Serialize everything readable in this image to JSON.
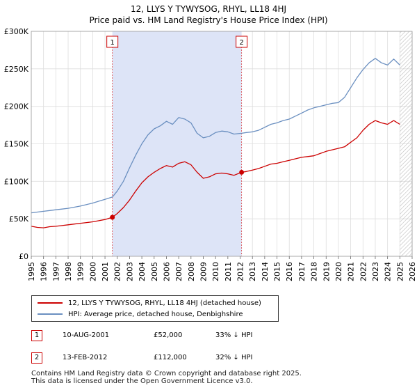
{
  "chart_data": {
    "type": "line",
    "title": "12, LLYS Y TYWYSOG, RHYL, LL18 4HJ",
    "subtitle": "Price paid vs. HM Land Registry's House Price Index (HPI)",
    "xlabel": "",
    "ylabel": "",
    "xlim": [
      1995,
      2026
    ],
    "ylim": [
      0,
      300000
    ],
    "y_ticks": [
      0,
      50000,
      100000,
      150000,
      200000,
      250000,
      300000
    ],
    "y_tick_labels": [
      "£0",
      "£50K",
      "£100K",
      "£150K",
      "£200K",
      "£250K",
      "£300K"
    ],
    "x_ticks": [
      1995,
      1996,
      1997,
      1998,
      1999,
      2000,
      2001,
      2002,
      2003,
      2004,
      2005,
      2006,
      2007,
      2008,
      2009,
      2010,
      2011,
      2012,
      2013,
      2014,
      2015,
      2016,
      2017,
      2018,
      2019,
      2020,
      2021,
      2022,
      2023,
      2024,
      2025,
      2026
    ],
    "x_tick_labels": [
      "1995",
      "1996",
      "1997",
      "1998",
      "1999",
      "2000",
      "2001",
      "2002",
      "2003",
      "2004",
      "2005",
      "2006",
      "2007",
      "2008",
      "2009",
      "2010",
      "2011",
      "2012",
      "2013",
      "2014",
      "2015",
      "2016",
      "2017",
      "2018",
      "2019",
      "2020",
      "2021",
      "2022",
      "2023",
      "2024",
      "2025",
      "2026"
    ],
    "grid": true,
    "shaded_region": {
      "x_start": 2001.6,
      "x_end": 2012.12,
      "color": "#dde4f7"
    },
    "hatched_region": {
      "x_start": 2025.0,
      "x_end": 2026
    },
    "series": [
      {
        "name": "12, LLYS Y TYWYSOG, RHYL, LL18 4HJ (detached house)",
        "color": "#cc0000",
        "x": [
          1995.0,
          1995.5,
          1996.0,
          1996.5,
          1997.0,
          1997.5,
          1998.0,
          1998.5,
          1999.0,
          1999.5,
          2000.0,
          2000.5,
          2001.0,
          2001.6,
          2002.0,
          2002.5,
          2003.0,
          2003.5,
          2004.0,
          2004.5,
          2005.0,
          2005.5,
          2006.0,
          2006.5,
          2007.0,
          2007.5,
          2008.0,
          2008.5,
          2009.0,
          2009.5,
          2010.0,
          2010.5,
          2011.0,
          2011.5,
          2012.12,
          2012.5,
          2013.0,
          2013.5,
          2014.0,
          2014.5,
          2015.0,
          2015.5,
          2016.0,
          2016.5,
          2017.0,
          2017.5,
          2018.0,
          2018.5,
          2019.0,
          2019.5,
          2020.0,
          2020.5,
          2021.0,
          2021.5,
          2022.0,
          2022.5,
          2023.0,
          2023.5,
          2024.0,
          2024.5,
          2025.0
        ],
        "values": [
          40000,
          38500,
          38000,
          39500,
          40000,
          41000,
          42000,
          43000,
          44000,
          45000,
          46000,
          47500,
          49000,
          52000,
          57000,
          65000,
          75000,
          87000,
          98000,
          106000,
          112000,
          117000,
          121000,
          119000,
          124000,
          126000,
          122000,
          112000,
          104000,
          106000,
          110000,
          111000,
          110000,
          108000,
          112000,
          113000,
          115000,
          117000,
          120000,
          123000,
          124000,
          126000,
          128000,
          130000,
          132000,
          133000,
          134000,
          137000,
          140000,
          142000,
          144000,
          146000,
          152000,
          158000,
          168000,
          176000,
          181000,
          178000,
          176000,
          181000,
          176000
        ]
      },
      {
        "name": "HPI: Average price, detached house, Denbighshire",
        "color": "#6a8fc0",
        "x": [
          1995.0,
          1995.5,
          1996.0,
          1996.5,
          1997.0,
          1997.5,
          1998.0,
          1998.5,
          1999.0,
          1999.5,
          2000.0,
          2000.5,
          2001.0,
          2001.6,
          2002.0,
          2002.5,
          2003.0,
          2003.5,
          2004.0,
          2004.5,
          2005.0,
          2005.5,
          2006.0,
          2006.5,
          2007.0,
          2007.5,
          2008.0,
          2008.5,
          2009.0,
          2009.5,
          2010.0,
          2010.5,
          2011.0,
          2011.5,
          2012.12,
          2012.5,
          2013.0,
          2013.5,
          2014.0,
          2014.5,
          2015.0,
          2015.5,
          2016.0,
          2016.5,
          2017.0,
          2017.5,
          2018.0,
          2018.5,
          2019.0,
          2019.5,
          2020.0,
          2020.5,
          2021.0,
          2021.5,
          2022.0,
          2022.5,
          2023.0,
          2023.5,
          2024.0,
          2024.5,
          2025.0
        ],
        "values": [
          58000,
          59000,
          60000,
          61000,
          62000,
          63000,
          64000,
          65500,
          67000,
          69000,
          71000,
          73500,
          76000,
          79000,
          87000,
          100000,
          118000,
          135000,
          150000,
          162000,
          170000,
          174000,
          180000,
          176000,
          185000,
          183000,
          178000,
          164000,
          158000,
          160000,
          165000,
          167000,
          166000,
          163000,
          164000,
          165000,
          166000,
          168000,
          172000,
          176000,
          178000,
          181000,
          183000,
          187000,
          191000,
          195000,
          198000,
          200000,
          202000,
          204000,
          205000,
          212000,
          225000,
          238000,
          249000,
          258000,
          264000,
          258000,
          255000,
          263000,
          255000
        ]
      }
    ],
    "annotations": [
      {
        "label": "1",
        "x": 2001.6,
        "y": 52000
      },
      {
        "label": "2",
        "x": 2012.12,
        "y": 112000
      }
    ]
  },
  "legend": {
    "items": [
      {
        "label": "12, LLYS Y TYWYSOG, RHYL, LL18 4HJ (detached house)",
        "color": "#cc0000"
      },
      {
        "label": "HPI: Average price, detached house, Denbighshire",
        "color": "#6a8fc0"
      }
    ]
  },
  "sales": [
    {
      "num": "1",
      "date": "10-AUG-2001",
      "price": "£52,000",
      "hpi": "33% ↓ HPI"
    },
    {
      "num": "2",
      "date": "13-FEB-2012",
      "price": "£112,000",
      "hpi": "32% ↓ HPI"
    }
  ],
  "footer": {
    "line1": "Contains HM Land Registry data © Crown copyright and database right 2025.",
    "line2": "This data is licensed under the Open Government Licence v3.0."
  }
}
